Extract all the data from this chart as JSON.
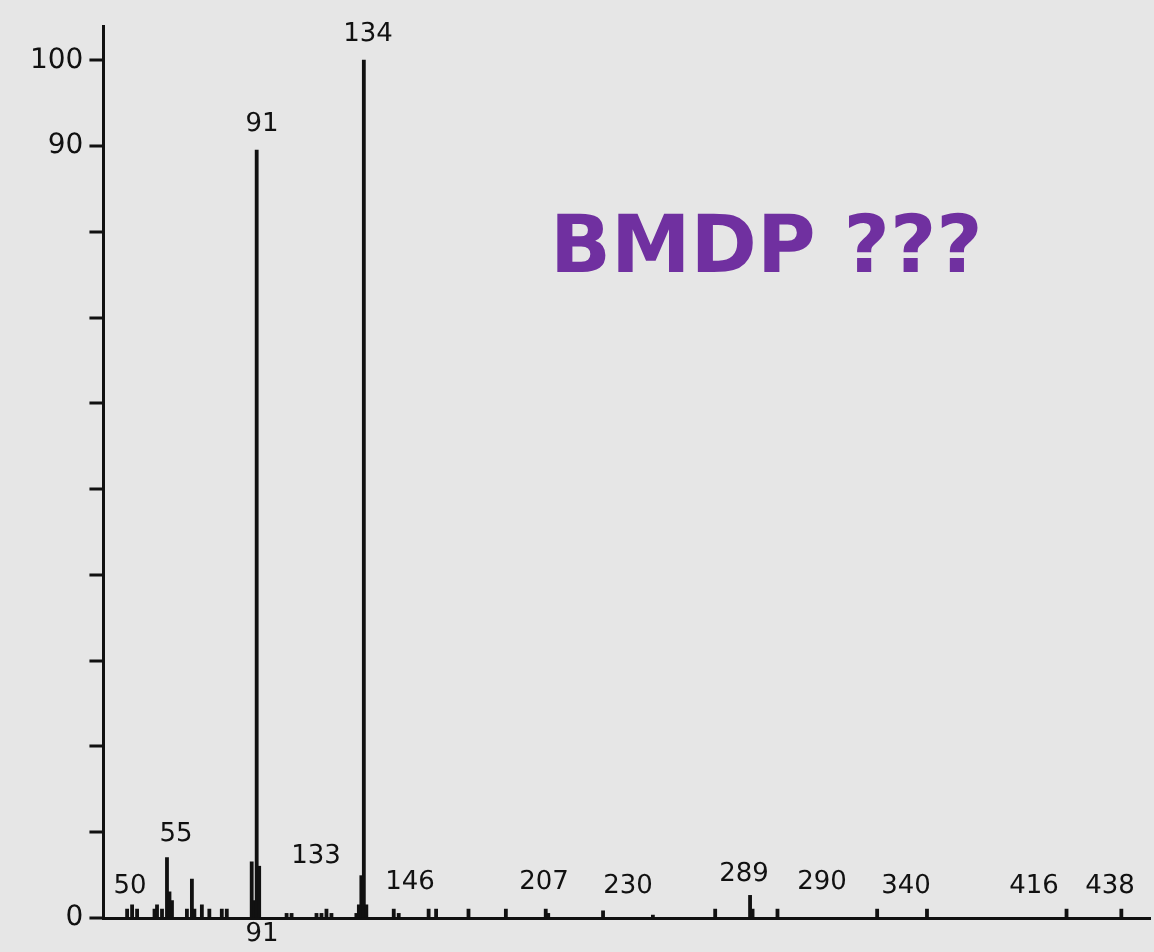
{
  "chart_data": {
    "type": "bar",
    "title": "BMDP ???",
    "categories": [
      null,
      null,
      null,
      null,
      null,
      null,
      null,
      null,
      null,
      null,
      null,
      null,
      null,
      null,
      null,
      null,
      null,
      null,
      null,
      null,
      null,
      null,
      null,
      null,
      null,
      null,
      null,
      null,
      null,
      null,
      null,
      null,
      null,
      null,
      null,
      null,
      null,
      null,
      null,
      null,
      null,
      null,
      null,
      null,
      null,
      null,
      null,
      null,
      null,
      null,
      null,
      null,
      null,
      null,
      null,
      null,
      null,
      null,
      null,
      null,
      null,
      null,
      null,
      null,
      null,
      null,
      null,
      null,
      null,
      null,
      null,
      null,
      null,
      null,
      null,
      null,
      null,
      null,
      null,
      null,
      null,
      null,
      null,
      null,
      null,
      null,
      null,
      null,
      null,
      null,
      null,
      null,
      null,
      null,
      null,
      null,
      null,
      null,
      null,
      null,
      null,
      null,
      null,
      null,
      null,
      null,
      null,
      null,
      null,
      null,
      null,
      null,
      null,
      null,
      null,
      null,
      null,
      null,
      null,
      null,
      null,
      null,
      null,
      null,
      null,
      null,
      null,
      null,
      null,
      null,
      null,
      null,
      null,
      null,
      null,
      null,
      null,
      null,
      null,
      null,
      null,
      null,
      null,
      null,
      null,
      null,
      null,
      null,
      null,
      null,
      null,
      null,
      null,
      null,
      null,
      null,
      null,
      null,
      null,
      null,
      null,
      null,
      null,
      null,
      null,
      null,
      null,
      null,
      null,
      null,
      null,
      null,
      null,
      null,
      null,
      null,
      null,
      null,
      null,
      null,
      null,
      null,
      null,
      null,
      null,
      null,
      null,
      null,
      null,
      null,
      null,
      null,
      null,
      null,
      null,
      null,
      null,
      null,
      null,
      null,
      null,
      null,
      null,
      null,
      null,
      null,
      null,
      null,
      null,
      null,
      null,
      null,
      null,
      null,
      null,
      null,
      null,
      null,
      null,
      null,
      null,
      null,
      null,
      null,
      null,
      null,
      null,
      null,
      null,
      null,
      null,
      null,
      null,
      null,
      null,
      null,
      null,
      null,
      null,
      null,
      null,
      null,
      null,
      null,
      null,
      null,
      null,
      null,
      null,
      null,
      null,
      null,
      null,
      null,
      null,
      null,
      null,
      null,
      null,
      null,
      null,
      null,
      null,
      null,
      null,
      null,
      null,
      null,
      null,
      null,
      null,
      null,
      null,
      null,
      null,
      null,
      null,
      null,
      null,
      null,
      null,
      null,
      null,
      null,
      null,
      null,
      null,
      null,
      null,
      null,
      null,
      null,
      null,
      null,
      null,
      null,
      null,
      null,
      null,
      null,
      null,
      null,
      null,
      null,
      null,
      null,
      null,
      null,
      null,
      null,
      null,
      null,
      null,
      null,
      null,
      null,
      null,
      null,
      null,
      null,
      null,
      null,
      null,
      null,
      null,
      null,
      null,
      null,
      null,
      null,
      null,
      null,
      null,
      null,
      null,
      null,
      null,
      null,
      null,
      null,
      null,
      null,
      null,
      null,
      null,
      null,
      null,
      null,
      null,
      null,
      null,
      null,
      null,
      null,
      null,
      null,
      null,
      null,
      null,
      null,
      null,
      null,
      null,
      null,
      null,
      null,
      null,
      null,
      null,
      null,
      null,
      null,
      null,
      null,
      null,
      null,
      null,
      null,
      null,
      null,
      null,
      null,
      null,
      null,
      null,
      null,
      null,
      null,
      null,
      null,
      null,
      null,
      null,
      null,
      null,
      null,
      null,
      null,
      null,
      null,
      null,
      null,
      null,
      null,
      null,
      null,
      null,
      null,
      null,
      null,
      null,
      null,
      null,
      null,
      null,
      null,
      null,
      null,
      null,
      null
    ],
    "values": [
      0,
      0,
      0,
      0,
      0,
      0,
      0,
      0,
      0,
      1,
      0,
      1.5,
      0,
      1,
      0,
      0,
      0,
      0,
      0,
      0,
      1,
      1.5,
      0,
      1,
      0,
      7,
      3,
      2,
      0,
      0,
      0,
      0,
      0,
      1,
      0,
      4.5,
      1,
      0,
      0,
      1.5,
      0,
      0,
      1,
      0,
      0,
      0,
      0,
      1,
      0,
      1,
      0,
      0,
      0,
      0,
      0,
      0,
      0,
      0,
      0,
      6.5,
      2,
      89.5,
      6,
      0,
      0,
      0,
      0,
      0,
      0,
      0,
      0,
      0,
      0,
      0.5,
      0,
      0.5,
      0,
      0,
      0,
      0,
      0,
      0,
      0,
      0,
      0,
      0.5,
      0,
      0.5,
      0,
      1,
      0,
      0.5,
      0,
      0,
      0,
      0,
      0,
      0,
      0,
      0,
      0,
      0.5,
      1.5,
      4.9,
      100,
      1.5,
      0,
      0,
      0,
      0,
      0,
      0,
      0,
      0,
      0,
      0,
      1,
      0,
      0.5,
      0,
      0,
      0,
      0,
      0,
      0,
      0,
      0,
      0,
      0,
      0,
      1,
      0,
      0,
      1,
      0,
      0,
      0,
      0,
      0,
      0,
      0,
      0,
      0,
      0,
      0,
      0,
      1,
      0,
      0,
      0,
      0,
      0,
      0,
      0,
      0,
      0,
      0,
      0,
      0,
      0,
      0,
      1,
      0,
      0,
      0,
      0,
      0,
      0,
      0,
      0,
      0,
      0,
      0,
      0,
      0,
      0,
      0,
      1,
      0.5,
      0,
      0,
      0,
      0,
      0,
      0,
      0,
      0,
      0,
      0,
      0,
      0,
      0,
      0,
      0,
      0,
      0,
      0,
      0,
      0,
      0,
      0.8,
      0,
      0,
      0,
      0,
      0,
      0,
      0,
      0,
      0,
      0,
      0,
      0,
      0,
      0,
      0,
      0,
      0,
      0,
      0,
      0.3,
      0,
      0,
      0,
      0,
      0,
      0,
      0,
      0,
      0,
      0,
      0,
      0,
      0,
      0,
      0,
      0,
      0,
      0,
      0,
      0,
      0,
      0,
      0,
      0,
      1,
      0,
      0,
      0,
      0,
      0,
      0,
      0,
      0,
      0,
      0,
      0,
      0,
      0,
      2.6,
      1,
      0,
      0,
      0,
      0,
      0,
      0,
      0,
      0,
      0,
      1,
      0,
      0,
      0,
      0,
      0,
      0,
      0,
      0,
      0,
      0,
      0,
      0,
      0,
      0,
      0,
      0,
      0,
      0,
      0,
      0,
      0,
      0,
      0,
      0,
      0,
      0,
      0,
      0,
      0,
      0,
      0,
      0,
      0,
      0,
      0,
      0,
      0,
      0,
      0,
      1,
      0,
      0,
      0,
      0,
      0,
      0,
      0,
      0,
      0,
      0,
      0,
      0,
      0,
      0,
      0,
      0,
      0,
      0,
      0,
      1,
      0,
      0,
      0,
      0,
      0,
      0,
      0,
      0,
      0,
      0,
      0,
      0,
      0,
      0,
      0,
      0,
      0,
      0,
      0,
      0,
      0,
      0,
      0,
      0,
      0,
      0,
      0,
      0,
      0,
      0,
      0,
      0,
      0,
      0,
      0,
      0,
      0,
      0,
      0,
      0,
      0,
      0,
      0,
      0,
      0,
      0,
      0,
      0,
      0,
      0,
      0,
      0,
      0,
      0,
      0,
      1,
      0,
      0,
      0,
      0,
      0,
      0,
      0,
      0,
      0,
      0,
      0,
      0,
      0,
      0,
      0,
      0,
      0,
      0,
      0,
      0,
      0,
      1,
      0,
      0,
      0,
      0,
      0,
      0,
      0,
      0,
      0,
      0,
      0
    ],
    "color": "#111111",
    "ylim": [
      0,
      104
    ],
    "yticks": [
      0,
      {
        "value": 10,
        "label": null
      },
      {
        "value": 20,
        "label": null
      },
      {
        "value": 30,
        "label": null
      },
      {
        "value": 40,
        "label": null
      },
      {
        "value": 50,
        "label": null
      },
      {
        "value": 60,
        "label": null
      },
      {
        "value": 70,
        "label": null
      },
      {
        "value": 80,
        "label": null
      },
      90,
      100
    ],
    "tick_labels": "y",
    "annotations": [
      "50",
      "55",
      "91",
      "91",
      "134",
      "133",
      "146",
      "207",
      "230",
      "289",
      "290",
      "340",
      "416",
      "438"
    ]
  }
}
